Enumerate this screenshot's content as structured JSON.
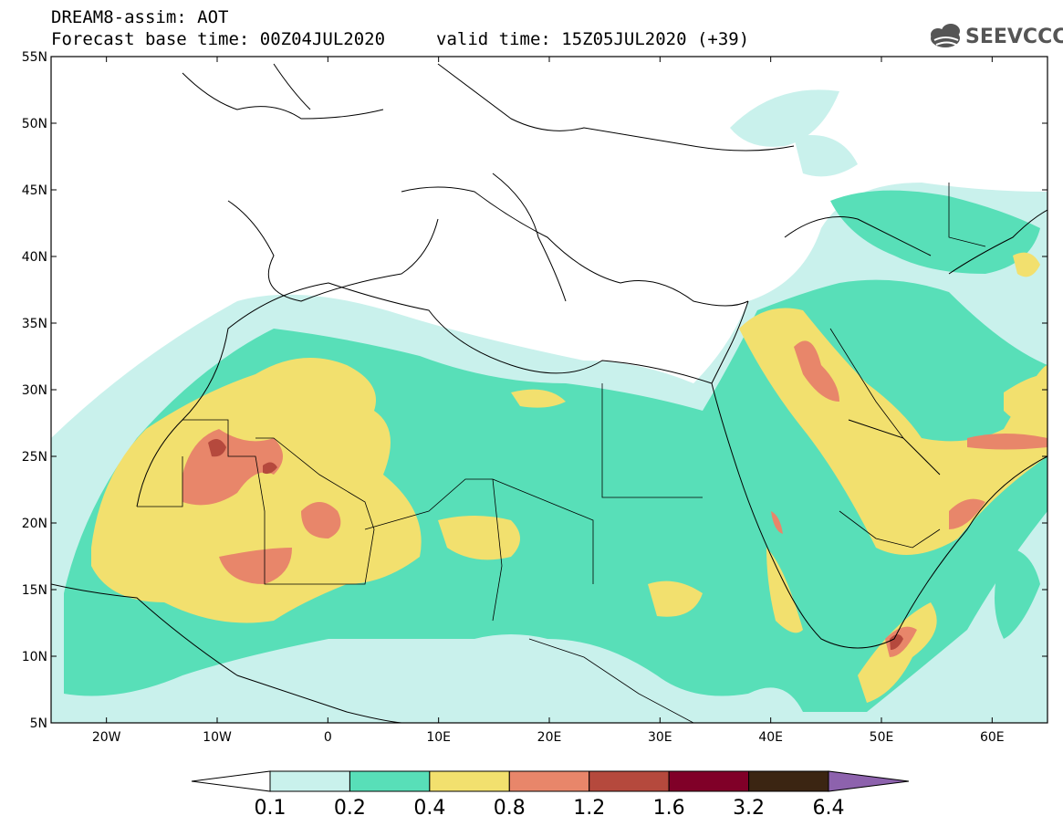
{
  "header": {
    "title": "DREAM8-assim: AOT",
    "base_time": "Forecast base time: 00Z04JUL2020",
    "valid_time": "valid time: 15Z05JUL2020 (+39)"
  },
  "logo": {
    "text": "SEEVCCC",
    "icon": "cloud-icon"
  },
  "map": {
    "lat_labels": [
      "55N",
      "50N",
      "45N",
      "40N",
      "35N",
      "30N",
      "25N",
      "20N",
      "15N",
      "10N",
      "5N"
    ],
    "lon_labels": [
      "20W",
      "10W",
      "0",
      "10E",
      "20E",
      "30E",
      "40E",
      "50E",
      "60E"
    ],
    "lon_range": [
      -25,
      65
    ],
    "lat_range": [
      5,
      55
    ]
  },
  "colorbar": {
    "ticks": [
      "0.1",
      "0.2",
      "0.4",
      "0.8",
      "1.2",
      "1.6",
      "3.2",
      "6.4"
    ],
    "colors": [
      "#ffffff",
      "#c9f1ec",
      "#58dfb8",
      "#f2e06e",
      "#e8866a",
      "#b5493d",
      "#800028",
      "#3b2512",
      "#8d62ad"
    ]
  },
  "colors": {
    "aot_0_1_0_2": "#c9f1ec",
    "aot_0_2_0_4": "#58dfb8",
    "aot_0_4_0_8": "#f2e06e",
    "aot_0_8_1_2": "#e8866a",
    "aot_1_2_1_6": "#b5493d"
  }
}
